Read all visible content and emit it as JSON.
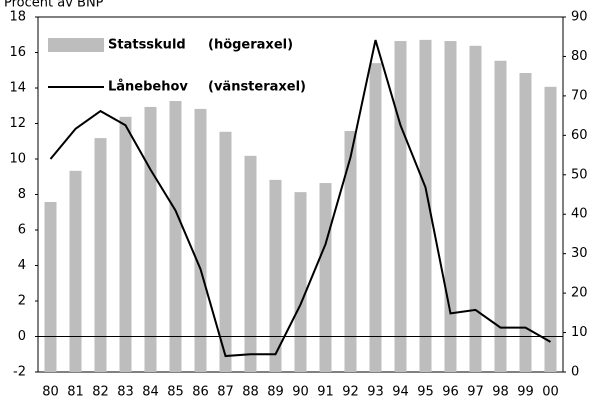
{
  "chart_data": {
    "type": "bar_line",
    "y_label": "Procent av BNP",
    "categories": [
      "80",
      "81",
      "82",
      "83",
      "84",
      "85",
      "86",
      "87",
      "88",
      "89",
      "90",
      "91",
      "92",
      "93",
      "94",
      "95",
      "96",
      "97",
      "98",
      "99",
      "00"
    ],
    "series": [
      {
        "name": "Statsskuld",
        "note": "(högeraxel)",
        "type": "bar",
        "axis": "y2",
        "color": "#bdbdbd",
        "values": [
          43.1,
          51,
          59.3,
          64.7,
          67.2,
          68.7,
          66.7,
          60.9,
          54.8,
          48.7,
          45.6,
          47.9,
          61.1,
          78.3,
          83.9,
          84.2,
          83.9,
          82.7,
          78.9,
          75.8,
          72.3
        ]
      },
      {
        "name": "Lånebehov",
        "note": "(vänsteraxel)",
        "type": "line",
        "axis": "y",
        "color": "#000000",
        "values": [
          10.0,
          11.7,
          12.7,
          11.9,
          9.4,
          7.1,
          3.8,
          -1.1,
          -1.0,
          -1.0,
          1.8,
          5.2,
          10.1,
          16.7,
          11.9,
          8.4,
          1.3,
          1.5,
          0.5,
          0.5,
          -0.3
        ]
      }
    ],
    "ylim": [
      -2,
      18
    ],
    "yticks": [
      -2,
      0,
      2,
      4,
      6,
      8,
      10,
      12,
      14,
      16,
      18
    ],
    "y2lim": [
      0,
      90
    ],
    "y2ticks": [
      0,
      10,
      20,
      30,
      40,
      50,
      60,
      70,
      80,
      90
    ]
  }
}
